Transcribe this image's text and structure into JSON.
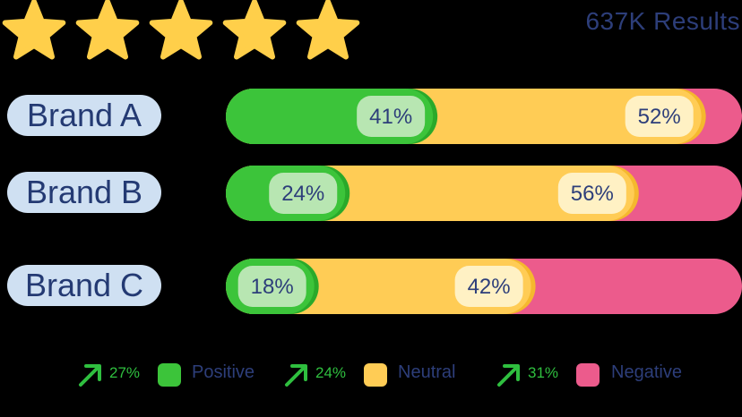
{
  "header": {
    "rating": 5,
    "rating_max": 5,
    "results_label": "637K Results"
  },
  "colors": {
    "positive": "#3cc43a",
    "positive_dark": "#2aa92a",
    "neutral": "#ffcc55",
    "neutral_dark": "#f5b82e",
    "negative": "#ec5b8c",
    "brand_pill": "#cfe0f2",
    "text_dark": "#2d3e7a",
    "trend_green": "#2fbf3f",
    "star": "#ffcf4a"
  },
  "chart_data": {
    "type": "bar",
    "orientation": "horizontal",
    "stacked": true,
    "categories": [
      "Brand A",
      "Brand B",
      "Brand C"
    ],
    "series": [
      {
        "name": "Positive",
        "values": [
          41,
          24,
          18
        ],
        "labels": [
          "41%",
          "24%",
          "18%"
        ]
      },
      {
        "name": "Neutral",
        "values": [
          52,
          56,
          42
        ],
        "labels": [
          "52%",
          "56%",
          "42%"
        ]
      },
      {
        "name": "Negative",
        "values": [
          7,
          20,
          40
        ]
      }
    ],
    "xlim": [
      0,
      100
    ],
    "legend_position": "bottom"
  },
  "legend": [
    {
      "trend": "27%",
      "label": "Positive"
    },
    {
      "trend": "24%",
      "label": "Neutral"
    },
    {
      "trend": "31%",
      "label": "Negative"
    }
  ]
}
